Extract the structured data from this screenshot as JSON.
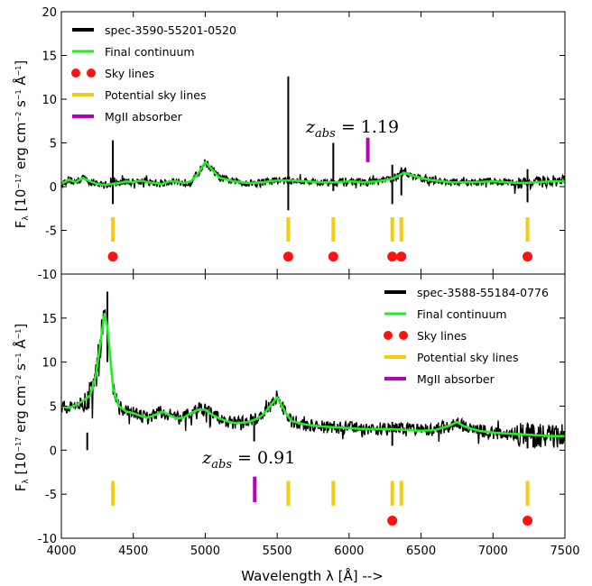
{
  "figure": {
    "xlabel": "Wavelength λ [Å] -->",
    "ylabel": "F_λ [10^-17 erg cm^-2 s^-1 Å^-1]",
    "ylabel_parts": {
      "F": "F",
      "lambda": "λ",
      "bracket_open": " [10",
      "exp1": "−17",
      "mid1": " erg cm",
      "exp2": "−2",
      "mid2": " s",
      "exp3": "−1",
      "angstrom": " Å",
      "exp4": "−1",
      "bracket_close": "]"
    }
  },
  "colors": {
    "spectrum": "#000000",
    "continuum": "#22ee22",
    "sky_lines": "#ff1111",
    "potential_sky_lines": "#f5cc10",
    "mgii_absorber": "#bb00bb"
  },
  "chart_data": [
    {
      "type": "line",
      "panel": "top",
      "xlim": [
        4000,
        7500
      ],
      "ylim": [
        -10,
        20
      ],
      "xticks": [
        4000,
        4500,
        5000,
        5500,
        6000,
        6500,
        7000,
        7500
      ],
      "yticks": [
        -10,
        -5,
        0,
        5,
        10,
        15,
        20
      ],
      "show_xtick_labels": false,
      "legend_position": "top-left",
      "legend": [
        "spec-3590-55201-0520",
        "Final continuum",
        "Sky lines",
        "Potential sky lines",
        "MgII absorber"
      ],
      "series": [
        {
          "name": "spec-3590-55201-0520",
          "kind": "spectrum",
          "noise": 0.45,
          "x": [
            4000,
            4050,
            4100,
            4150,
            4200,
            4250,
            4300,
            4350,
            4400,
            4450,
            4500,
            4550,
            4600,
            4650,
            4700,
            4750,
            4800,
            4850,
            4900,
            4950,
            5000,
            5025,
            5050,
            5100,
            5150,
            5200,
            5300,
            5400,
            5500,
            5600,
            5700,
            5800,
            5900,
            6000,
            6100,
            6200,
            6300,
            6350,
            6380,
            6450,
            6550,
            6700,
            6850,
            7000,
            7100,
            7200,
            7300,
            7400,
            7500
          ],
          "y": [
            0.3,
            0.8,
            0.5,
            1.0,
            0.6,
            0.3,
            0.2,
            0.3,
            0.4,
            0.6,
            0.5,
            0.7,
            0.5,
            0.4,
            0.3,
            0.6,
            0.6,
            0.4,
            0.6,
            1.5,
            2.8,
            2.4,
            1.9,
            1.0,
            0.8,
            0.6,
            0.4,
            0.5,
            0.7,
            0.7,
            0.6,
            0.5,
            0.5,
            0.6,
            0.5,
            0.6,
            0.9,
            1.3,
            1.6,
            1.2,
            0.8,
            0.5,
            0.5,
            0.6,
            0.5,
            0.4,
            0.5,
            0.6,
            0.6
          ]
        },
        {
          "name": "Final continuum",
          "kind": "continuum",
          "x": [
            4000,
            4050,
            4100,
            4150,
            4200,
            4250,
            4300,
            4350,
            4400,
            4450,
            4500,
            4550,
            4600,
            4650,
            4700,
            4750,
            4800,
            4850,
            4900,
            4950,
            5000,
            5025,
            5050,
            5100,
            5150,
            5200,
            5300,
            5400,
            5500,
            5600,
            5700,
            5800,
            5900,
            6000,
            6100,
            6200,
            6300,
            6350,
            6380,
            6450,
            6550,
            6700,
            6850,
            7000,
            7100,
            7200,
            7300,
            7400,
            7500
          ],
          "y": [
            0.3,
            0.8,
            0.5,
            1.0,
            0.6,
            0.3,
            0.2,
            0.3,
            0.4,
            0.6,
            0.5,
            0.7,
            0.5,
            0.4,
            0.3,
            0.6,
            0.6,
            0.4,
            0.6,
            1.5,
            2.8,
            2.4,
            1.9,
            1.0,
            0.8,
            0.6,
            0.4,
            0.5,
            0.7,
            0.7,
            0.6,
            0.5,
            0.5,
            0.6,
            0.5,
            0.6,
            0.9,
            1.3,
            1.6,
            1.2,
            0.8,
            0.5,
            0.5,
            0.6,
            0.5,
            0.4,
            0.5,
            0.6,
            0.6
          ]
        }
      ],
      "spikes": [
        {
          "x": 4358,
          "y_top": 5.3,
          "y_bottom": -2.0
        },
        {
          "x": 5577,
          "y_top": 12.6,
          "y_bottom": -2.7
        },
        {
          "x": 5890,
          "y_top": 5.0,
          "y_bottom": -0.5
        },
        {
          "x": 6300,
          "y_top": 2.5,
          "y_bottom": -2.0
        },
        {
          "x": 6363,
          "y_top": 2.2,
          "y_bottom": -1.0
        },
        {
          "x": 7240,
          "y_top": 2.0,
          "y_bottom": -1.8
        }
      ],
      "potential_sky_lines_x": [
        4358,
        5577,
        5890,
        6300,
        6363,
        7240
      ],
      "potential_sky_lines_y": [
        -3.5,
        -6.3
      ],
      "sky_lines_x": [
        4358,
        5577,
        5890,
        6300,
        6363,
        7240
      ],
      "sky_lines_y": -8.0,
      "mgii_absorber": {
        "x": 6130,
        "y_range": [
          2.8,
          5.6
        ]
      },
      "annotation": {
        "label": "z",
        "subscript": "abs",
        "equals": " = 1.19",
        "x": 5700,
        "y": 6.2
      }
    },
    {
      "type": "line",
      "panel": "bottom",
      "xlim": [
        4000,
        7500
      ],
      "ylim": [
        -10,
        20
      ],
      "xticks": [
        4000,
        4500,
        5000,
        5500,
        6000,
        6500,
        7000,
        7500
      ],
      "yticks": [
        -10,
        -5,
        0,
        5,
        10,
        15
      ],
      "show_xtick_labels": true,
      "legend_position": "top-right",
      "legend": [
        "spec-3588-55184-0776",
        "Final continuum",
        "Sky lines",
        "Potential sky lines",
        "MgII absorber"
      ],
      "series": [
        {
          "name": "spec-3588-55184-0776",
          "kind": "spectrum",
          "noise": 0.75,
          "x": [
            4000,
            4050,
            4100,
            4150,
            4200,
            4240,
            4270,
            4300,
            4320,
            4340,
            4360,
            4400,
            4450,
            4500,
            4550,
            4600,
            4650,
            4700,
            4750,
            4800,
            4850,
            4900,
            4950,
            5000,
            5050,
            5100,
            5150,
            5200,
            5250,
            5300,
            5350,
            5400,
            5450,
            5500,
            5550,
            5600,
            5700,
            5800,
            5900,
            6000,
            6100,
            6200,
            6300,
            6400,
            6500,
            6600,
            6700,
            6750,
            6800,
            6900,
            7000,
            7100,
            7200,
            7300,
            7400,
            7500
          ],
          "y": [
            5.0,
            4.8,
            5.1,
            5.6,
            6.2,
            8.5,
            12.0,
            15.5,
            14.0,
            10.5,
            7.0,
            5.0,
            4.4,
            4.2,
            3.9,
            3.7,
            4.0,
            4.4,
            4.0,
            3.6,
            3.7,
            4.2,
            4.6,
            4.6,
            4.0,
            3.6,
            3.3,
            3.1,
            3.1,
            3.2,
            3.5,
            4.0,
            5.0,
            6.0,
            4.5,
            3.3,
            2.9,
            2.7,
            2.6,
            2.5,
            2.4,
            2.4,
            2.4,
            2.3,
            2.2,
            2.3,
            2.8,
            3.2,
            2.7,
            2.2,
            2.0,
            1.9,
            1.8,
            1.7,
            1.6,
            1.6
          ]
        },
        {
          "name": "Final continuum",
          "kind": "continuum",
          "x": [
            4000,
            4050,
            4100,
            4150,
            4200,
            4240,
            4270,
            4300,
            4320,
            4340,
            4360,
            4400,
            4450,
            4500,
            4550,
            4600,
            4650,
            4700,
            4750,
            4800,
            4850,
            4900,
            4950,
            5000,
            5050,
            5100,
            5150,
            5200,
            5250,
            5300,
            5350,
            5400,
            5450,
            5500,
            5550,
            5600,
            5700,
            5800,
            5900,
            6000,
            6100,
            6200,
            6300,
            6400,
            6500,
            6600,
            6700,
            6750,
            6800,
            6900,
            7000,
            7100,
            7200,
            7300,
            7400,
            7500
          ],
          "y": [
            5.0,
            4.8,
            5.1,
            5.6,
            6.2,
            8.5,
            12.0,
            15.5,
            14.0,
            10.5,
            7.0,
            5.0,
            4.4,
            4.2,
            3.9,
            3.7,
            4.0,
            4.4,
            4.0,
            3.6,
            3.7,
            4.2,
            4.6,
            4.6,
            4.0,
            3.6,
            3.3,
            3.1,
            3.1,
            3.2,
            3.5,
            4.0,
            5.0,
            6.0,
            4.5,
            3.3,
            2.9,
            2.7,
            2.6,
            2.5,
            2.4,
            2.4,
            2.4,
            2.3,
            2.2,
            2.3,
            2.8,
            3.2,
            2.7,
            2.2,
            2.0,
            1.9,
            1.8,
            1.7,
            1.6,
            1.6
          ]
        }
      ],
      "spikes": [
        {
          "x": 4320,
          "y_top": 18.0,
          "y_bottom": 10.0
        },
        {
          "x": 4180,
          "y_top": 2.0,
          "y_bottom": 0.0
        },
        {
          "x": 5340,
          "y_top": 3.0,
          "y_bottom": 1.0
        },
        {
          "x": 6300,
          "y_top": 3.2,
          "y_bottom": 0.5
        },
        {
          "x": 7240,
          "y_top": 3.0,
          "y_bottom": 0.2
        },
        {
          "x": 7280,
          "y_top": 2.8,
          "y_bottom": 0.3
        },
        {
          "x": 7330,
          "y_top": 2.6,
          "y_bottom": 0.6
        }
      ],
      "potential_sky_lines_x": [
        4358,
        5577,
        5890,
        6300,
        6363,
        7240
      ],
      "potential_sky_lines_y": [
        -3.5,
        -6.3
      ],
      "sky_lines_x": [
        6300,
        7240
      ],
      "sky_lines_y": -8.0,
      "mgii_absorber": {
        "x": 5344,
        "y_range": [
          -3.0,
          -5.9
        ]
      },
      "annotation": {
        "label": "z",
        "subscript": "abs",
        "equals": " = 0.91",
        "x": 4980,
        "y": -1.5
      }
    }
  ]
}
